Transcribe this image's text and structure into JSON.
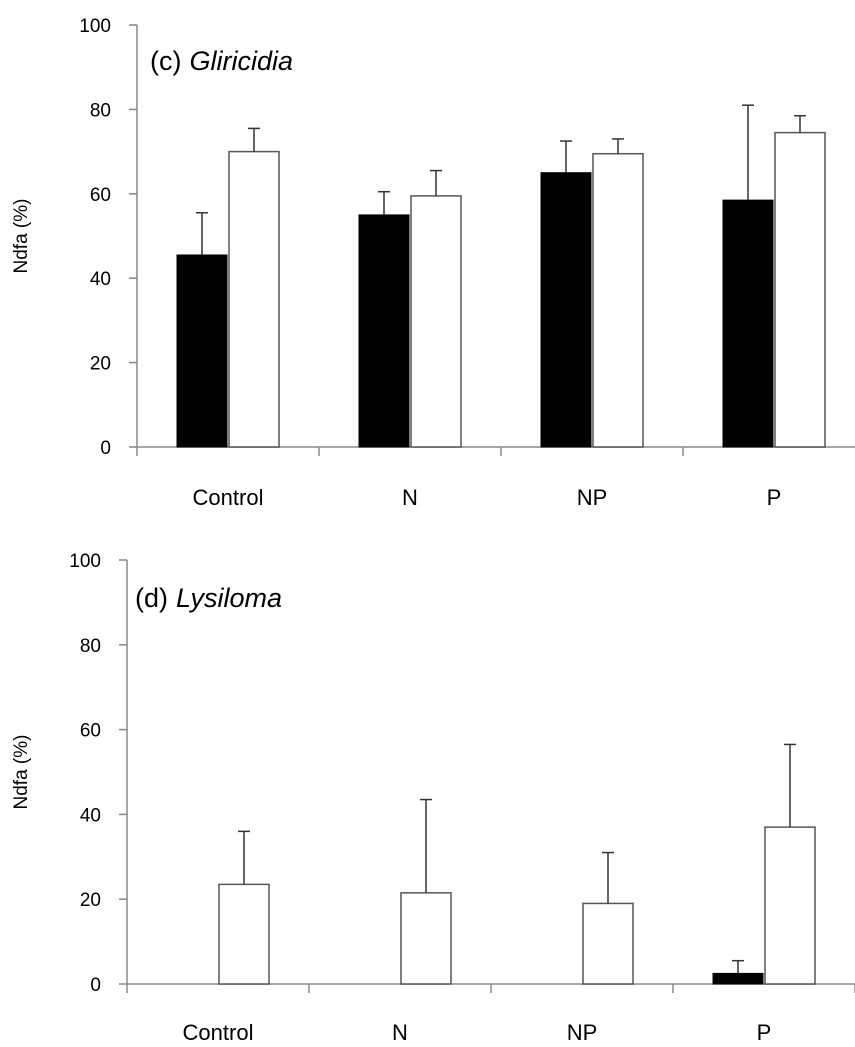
{
  "chart_data": [
    {
      "type": "bar",
      "title_label": "(c)",
      "title_species": "Gliricidia",
      "ylabel": "Ndfa (%)",
      "xlabel": "",
      "categories": [
        "Control",
        "N",
        "NP",
        "P"
      ],
      "ylim": [
        0,
        100
      ],
      "yticks": [
        0,
        20,
        40,
        60,
        80,
        100
      ],
      "yticklabels": [
        "0",
        "20",
        "40",
        "60",
        "80",
        "100"
      ],
      "grid": false,
      "legend": "none",
      "series": [
        {
          "color": "#000000",
          "values": [
            45.5,
            55,
            65,
            58.5
          ],
          "errors": [
            10,
            5.5,
            7.5,
            22.5
          ]
        },
        {
          "color": "#ffffff",
          "values": [
            70,
            59.5,
            69.5,
            74.5
          ],
          "errors": [
            5.5,
            6,
            3.5,
            4
          ]
        }
      ]
    },
    {
      "type": "bar",
      "title_label": "(d)",
      "title_species": "Lysiloma",
      "ylabel": "Ndfa (%)",
      "xlabel": "",
      "categories": [
        "Control",
        "N",
        "NP",
        "P"
      ],
      "ylim": [
        0,
        100
      ],
      "yticks": [
        0,
        20,
        40,
        60,
        80,
        100
      ],
      "yticklabels": [
        "0",
        "20",
        "40",
        "60",
        "80",
        "100"
      ],
      "grid": false,
      "legend": "none",
      "series": [
        {
          "color": "#000000",
          "values": [
            0,
            0,
            0,
            2.5
          ],
          "errors": [
            0,
            0,
            0,
            3
          ]
        },
        {
          "color": "#ffffff",
          "values": [
            23.5,
            21.5,
            19,
            37
          ],
          "errors": [
            12.5,
            22,
            12,
            19.5
          ]
        }
      ]
    }
  ]
}
